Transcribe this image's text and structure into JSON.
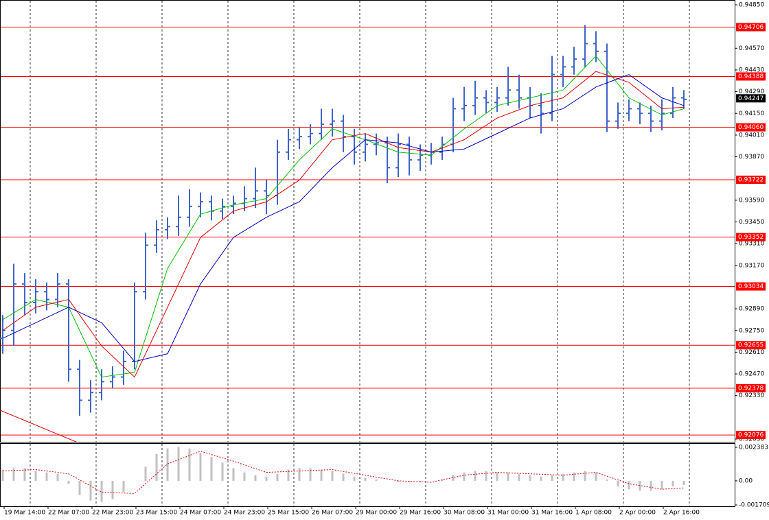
{
  "chart_data": {
    "type": "ohlc",
    "color": "#3f64c8",
    "open": [
      0.927,
      0.9275,
      0.9305,
      0.9293,
      0.93,
      0.9295,
      0.9305,
      0.925,
      0.923,
      0.9235,
      0.9242,
      0.9245,
      0.9255,
      0.93,
      0.933,
      0.934,
      0.9342,
      0.9348,
      0.9355,
      0.9358,
      0.9352,
      0.9355,
      0.9357,
      0.936,
      0.9365,
      0.9362,
      0.939,
      0.9398,
      0.94,
      0.9402,
      0.9408,
      0.941,
      0.94,
      0.939,
      0.9395,
      0.9396,
      0.938,
      0.9395,
      0.9385,
      0.9388,
      0.939,
      0.9395,
      0.9418,
      0.942,
      0.9425,
      0.9422,
      0.9425,
      0.943,
      0.9425,
      0.942,
      0.9415,
      0.944,
      0.9445,
      0.945,
      0.946,
      0.9455,
      0.941,
      0.9415,
      0.9418,
      0.9415,
      0.941,
      0.9415,
      0.9425
    ],
    "high": [
      0.9285,
      0.9318,
      0.9312,
      0.9308,
      0.9306,
      0.9312,
      0.9308,
      0.9256,
      0.9243,
      0.925,
      0.9252,
      0.9262,
      0.9306,
      0.9338,
      0.9346,
      0.9348,
      0.9362,
      0.9366,
      0.9364,
      0.9362,
      0.936,
      0.9362,
      0.9368,
      0.938,
      0.9372,
      0.9398,
      0.9405,
      0.9406,
      0.9408,
      0.9418,
      0.9418,
      0.9414,
      0.9405,
      0.9402,
      0.9402,
      0.94,
      0.9402,
      0.94,
      0.9395,
      0.9396,
      0.94,
      0.9425,
      0.9432,
      0.9436,
      0.943,
      0.9432,
      0.9445,
      0.944,
      0.9432,
      0.9428,
      0.9452,
      0.9452,
      0.9458,
      0.9472,
      0.9468,
      0.946,
      0.9422,
      0.9424,
      0.9422,
      0.942,
      0.9424,
      0.9432,
      0.943
    ],
    "low": [
      0.926,
      0.9265,
      0.9285,
      0.9286,
      0.9288,
      0.929,
      0.9242,
      0.922,
      0.9222,
      0.923,
      0.9238,
      0.924,
      0.925,
      0.9295,
      0.9325,
      0.9334,
      0.9336,
      0.9342,
      0.9348,
      0.9346,
      0.9347,
      0.935,
      0.9352,
      0.9354,
      0.935,
      0.9356,
      0.9385,
      0.9392,
      0.9395,
      0.9398,
      0.94,
      0.939,
      0.9382,
      0.9384,
      0.9388,
      0.937,
      0.9374,
      0.9375,
      0.9378,
      0.9382,
      0.9385,
      0.939,
      0.941,
      0.9414,
      0.9415,
      0.9416,
      0.942,
      0.9418,
      0.9412,
      0.9402,
      0.941,
      0.9432,
      0.944,
      0.9445,
      0.9448,
      0.9403,
      0.9405,
      0.941,
      0.9408,
      0.9403,
      0.9404,
      0.9412,
      0.9418
    ],
    "close": [
      0.9275,
      0.9305,
      0.9293,
      0.93,
      0.9295,
      0.9305,
      0.925,
      0.923,
      0.9235,
      0.9242,
      0.9245,
      0.9255,
      0.93,
      0.933,
      0.934,
      0.9342,
      0.9348,
      0.9355,
      0.9358,
      0.9352,
      0.9355,
      0.9357,
      0.936,
      0.9365,
      0.9362,
      0.939,
      0.9398,
      0.94,
      0.9402,
      0.9408,
      0.941,
      0.94,
      0.939,
      0.9395,
      0.9396,
      0.938,
      0.9395,
      0.9385,
      0.9388,
      0.939,
      0.9395,
      0.9418,
      0.942,
      0.9425,
      0.9422,
      0.9425,
      0.943,
      0.9425,
      0.942,
      0.9415,
      0.944,
      0.9445,
      0.945,
      0.946,
      0.9455,
      0.941,
      0.9415,
      0.9418,
      0.9415,
      0.941,
      0.9415,
      0.9425,
      0.9424
    ],
    "lines": [
      {
        "color": "#00c000",
        "x": [
          0,
          3,
          6,
          9,
          12,
          15,
          18,
          21,
          24,
          27,
          30,
          33,
          36,
          39,
          42,
          45,
          48,
          51,
          54,
          57,
          60,
          62
        ],
        "values": [
          0.9282,
          0.9295,
          0.929,
          0.9245,
          0.9248,
          0.9315,
          0.935,
          0.9356,
          0.936,
          0.9385,
          0.9405,
          0.9398,
          0.939,
          0.9388,
          0.9405,
          0.942,
          0.9425,
          0.943,
          0.9452,
          0.9425,
          0.9414,
          0.9418
        ]
      },
      {
        "color": "#e00000",
        "x": [
          0,
          3,
          6,
          9,
          12,
          15,
          18,
          21,
          24,
          27,
          30,
          33,
          36,
          39,
          42,
          45,
          48,
          51,
          54,
          57,
          60,
          62
        ],
        "values": [
          0.9275,
          0.929,
          0.9295,
          0.9265,
          0.9245,
          0.929,
          0.9335,
          0.9352,
          0.9358,
          0.9372,
          0.9398,
          0.9402,
          0.9393,
          0.939,
          0.9398,
          0.9412,
          0.942,
          0.9425,
          0.9442,
          0.9435,
          0.9418,
          0.9419
        ]
      },
      {
        "color": "#0000c0",
        "x": [
          0,
          3,
          6,
          9,
          12,
          15,
          18,
          21,
          24,
          27,
          30,
          33,
          36,
          39,
          42,
          45,
          48,
          51,
          54,
          57,
          60,
          62
        ],
        "values": [
          0.927,
          0.928,
          0.929,
          0.928,
          0.9255,
          0.926,
          0.9305,
          0.9335,
          0.9348,
          0.9358,
          0.938,
          0.9398,
          0.9396,
          0.939,
          0.9392,
          0.9402,
          0.9412,
          0.9418,
          0.9432,
          0.944,
          0.9425,
          0.942
        ]
      }
    ],
    "xlim": [
      -0.25,
      66.625
    ],
    "xticks": [
      {
        "value": 0.125,
        "label": "19 Mar 14:00"
      },
      {
        "value": 4.125,
        "label": "22 Mar 07:00"
      },
      {
        "value": 8.125,
        "label": "22 Mar 23:00"
      },
      {
        "value": 12.125,
        "label": "23 Mar 15:00"
      },
      {
        "value": 16.125,
        "label": "24 Mar 07:00"
      },
      {
        "value": 20.125,
        "label": "24 Mar 23:00"
      },
      {
        "value": 24.125,
        "label": "25 Mar 15:00"
      },
      {
        "value": 28.125,
        "label": "26 Mar 07:00"
      },
      {
        "value": 32.125,
        "label": "29 Mar 00:00"
      },
      {
        "value": 36.125,
        "label": "29 Mar 16:00"
      },
      {
        "value": 40.125,
        "label": "30 Mar 08:00"
      },
      {
        "value": 44.125,
        "label": "31 Mar 00:00"
      },
      {
        "value": 48.125,
        "label": "31 Mar 16:00"
      },
      {
        "value": 52.125,
        "label": "1 Apr 08:00"
      },
      {
        "value": 56.125,
        "label": "2 Apr 00:00"
      },
      {
        "value": 60.125,
        "label": "2 Apr 16:00"
      }
    ],
    "xgrid": [
      2.5,
      8.5,
      14.5,
      20.5,
      26.5,
      32.5,
      38.5,
      44.5,
      50.5,
      56.5,
      62.5
    ],
    "ylim": [
      0.9205,
      0.9485
    ],
    "yticks": [
      {
        "value": 0.9485,
        "label": "0.94850"
      },
      {
        "value": 0.9457,
        "label": "0.94570"
      },
      {
        "value": 0.9443,
        "label": "0.94430"
      },
      {
        "value": 0.9429,
        "label": "0.94290"
      },
      {
        "value": 0.9415,
        "label": "0.94150"
      },
      {
        "value": 0.9401,
        "label": "0.94010"
      },
      {
        "value": 0.9387,
        "label": "0.93870"
      },
      {
        "value": 0.9359,
        "label": "0.93590"
      },
      {
        "value": 0.9345,
        "label": "0.93450"
      },
      {
        "value": 0.9331,
        "label": "0.93310"
      },
      {
        "value": 0.9317,
        "label": "0.93170"
      },
      {
        "value": 0.9289,
        "label": "0.92890"
      },
      {
        "value": 0.9275,
        "label": "0.92750"
      },
      {
        "value": 0.9261,
        "label": "0.92610"
      },
      {
        "value": 0.9247,
        "label": "0.92470"
      },
      {
        "value": 0.9233,
        "label": "0.92330"
      },
      {
        "value": 0.9205,
        "label": "0.92050"
      }
    ],
    "levels": {
      "color": "#ff0000",
      "values": [
        0.94706,
        0.94388,
        {
          "value": 0.9406,
          "label": "0.94060"
        },
        0.93722,
        0.93352,
        0.93034,
        0.92655,
        0.92378,
        0.92076
      ]
    },
    "current_price": 0.94247,
    "macd": {
      "ylim": [
        -0.001709,
        0.002383
      ],
      "yticks": [
        0.002383,
        {
          "value": 0,
          "label": "0.00"
        },
        -0.001709
      ],
      "color": "#c0c0c0",
      "histogram": [
        0.0008,
        0.0009,
        0.0009,
        0.0007,
        0.0006,
        0.0005,
        -0.0002,
        -0.001,
        -0.0014,
        -0.0015,
        -0.0013,
        -0.0008,
        0.0,
        0.001,
        0.0019,
        0.0023,
        0.0024,
        0.0023,
        0.002,
        0.0017,
        0.0013,
        0.0009,
        0.0006,
        0.0004,
        0.0003,
        0.0005,
        0.0008,
        0.0009,
        0.0009,
        0.0008,
        0.0007,
        0.0005,
        0.0003,
        0.0002,
        0.0001,
        0.0,
        -0.0001,
        -0.0001,
        -0.0001,
        0.0,
        0.0001,
        0.0004,
        0.0006,
        0.0007,
        0.0007,
        0.0006,
        0.0006,
        0.0005,
        0.0004,
        0.0003,
        0.0004,
        0.0005,
        0.0006,
        0.0007,
        0.0006,
        0.0001,
        -0.0004,
        -0.0006,
        -0.0007,
        -0.0007,
        -0.0006,
        -0.0004,
        -0.0003
      ],
      "signal": {
        "color": "#e00000",
        "x": [
          0,
          3,
          6,
          9,
          12,
          15,
          18,
          21,
          24,
          27,
          30,
          33,
          36,
          39,
          42,
          45,
          48,
          51,
          54,
          57,
          60,
          62
        ],
        "values": [
          0.0007,
          0.0008,
          0.0005,
          -0.0008,
          -0.0009,
          0.0012,
          0.0021,
          0.0014,
          0.0006,
          0.0007,
          0.0008,
          0.0004,
          0.0,
          -0.0001,
          0.0004,
          0.0006,
          0.0005,
          0.0004,
          0.0006,
          -0.0002,
          -0.0006,
          -0.0005
        ]
      }
    }
  }
}
